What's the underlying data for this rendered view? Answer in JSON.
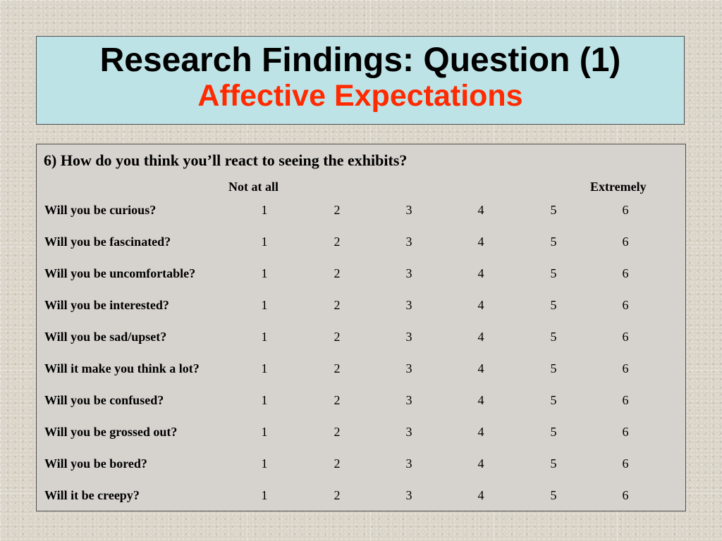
{
  "title": {
    "main": "Research Findings: Question (1)",
    "sub": "Affective Expectations"
  },
  "colors": {
    "title_box_bg": "#bde3e6",
    "subtitle_color": "#ff2a00",
    "survey_box_bg": "#d6d3ce"
  },
  "survey": {
    "question": "6) How do you think you’ll react to seeing the exhibits?",
    "scale_low_label": "Not at all",
    "scale_high_label": "Extremely",
    "scale_values": [
      "1",
      "2",
      "3",
      "4",
      "5",
      "6"
    ],
    "items": [
      "Will you be curious?",
      "Will you be fascinated?",
      "Will you be uncomfortable?",
      "Will you be interested?",
      "Will you be sad/upset?",
      "Will it make you think a lot?",
      "Will you be confused?",
      "Will you be grossed out?",
      "Will you be bored?",
      "Will it be creepy?"
    ]
  }
}
